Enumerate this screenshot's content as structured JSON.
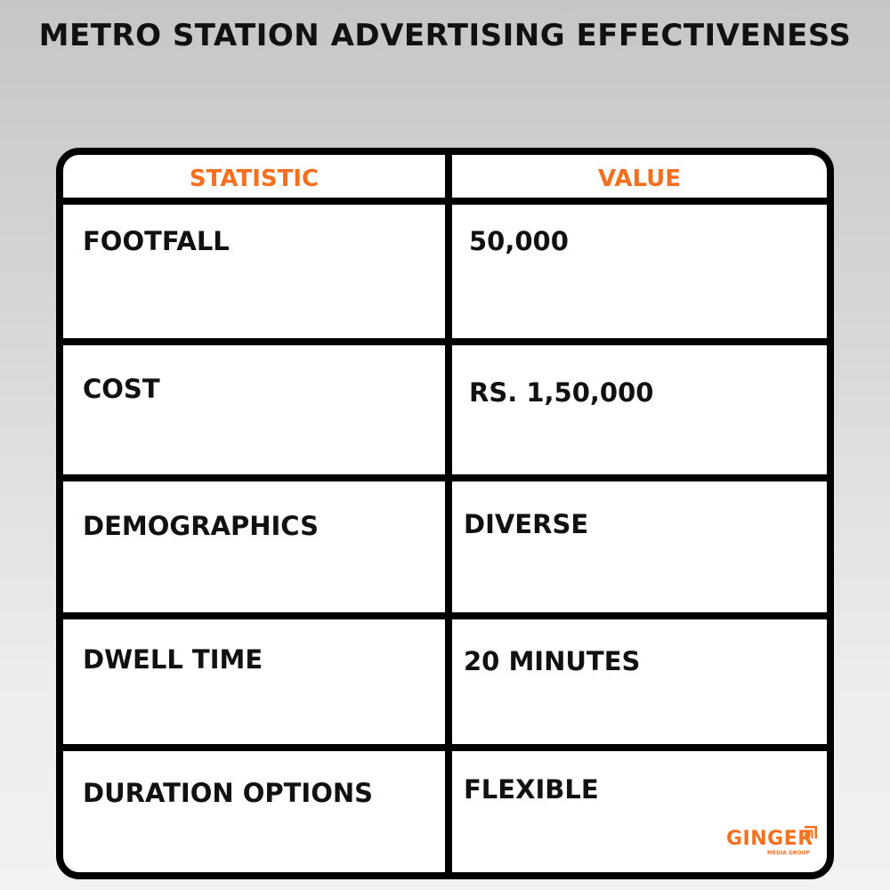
{
  "title": "METRO STATION ADVERTISING EFFECTIVENESS",
  "table": {
    "headers": [
      "STATISTIC",
      "VALUE"
    ],
    "rows": [
      {
        "statistic": "FOOTFALL",
        "value": "50,000"
      },
      {
        "statistic": "COST",
        "value": "RS. 1,50,000"
      },
      {
        "statistic": "DEMOGRAPHICS",
        "value": "DIVERSE"
      },
      {
        "statistic": "DWELL TIME",
        "value": "20 MINUTES"
      },
      {
        "statistic": "DURATION OPTIONS",
        "value": "FLEXIBLE"
      }
    ]
  },
  "logo": {
    "name": "GINGER",
    "tagline": "MEDIA GROUP"
  },
  "colors": {
    "accent": "#f37021",
    "border": "#000000"
  }
}
